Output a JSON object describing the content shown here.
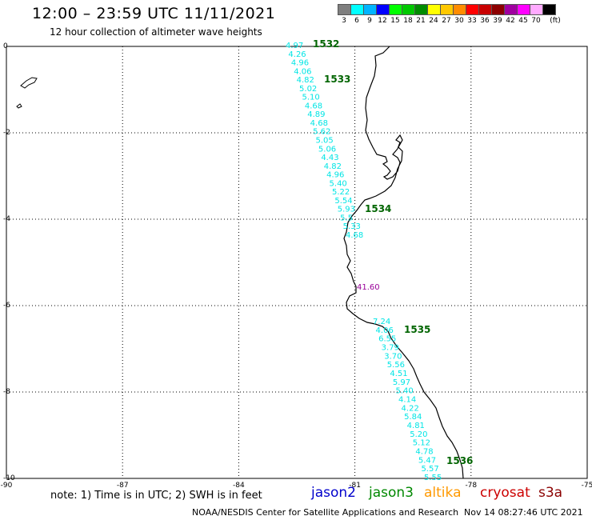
{
  "header": {
    "title": "12:00 – 23:59 UTC 11/11/2021",
    "subtitle": "12 hour collection of altimeter wave heights"
  },
  "scale": {
    "labels": [
      "3",
      "6",
      "9",
      "12",
      "15",
      "18",
      "21",
      "24",
      "27",
      "30",
      "33",
      "36",
      "39",
      "42",
      "45",
      "70",
      "(ft)"
    ],
    "colors": [
      "#7f7f7f",
      "#00ffff",
      "#00b4ff",
      "#0000ff",
      "#00ff00",
      "#00c800",
      "#008c00",
      "#ffff00",
      "#ffc800",
      "#ff8c00",
      "#ff0000",
      "#c80000",
      "#8c0000",
      "#a000a0",
      "#ff00ff",
      "#ffaaff",
      "#000000"
    ]
  },
  "map": {
    "lon_range": [
      -90,
      -75
    ],
    "lat_range": [
      -10,
      0
    ],
    "x_ticks": [
      "-90",
      "-87",
      "-84",
      "-81",
      "-78",
      "-75"
    ],
    "y_ticks": [
      "0",
      "-2",
      "-4",
      "-6",
      "-8",
      "-10"
    ],
    "grid": "dotted",
    "swh_color": "#00e5e5",
    "pass_color": "#006400",
    "outlier_color": "#990099",
    "swh_track_1": [
      "4.97",
      "4.26",
      "4.96",
      "4.06",
      "4.82",
      "5.02",
      "5.10",
      "4.68",
      "4.89",
      "4.68",
      "5.62",
      "5.05",
      "5.06",
      "4.43",
      "4.82",
      "4.96",
      "5.40",
      "5.22",
      "5.54",
      "5.93",
      "5.5",
      "5.33",
      "4.68"
    ],
    "swh_track_2": [
      "7.24",
      "4.06",
      "6.55",
      "3.79",
      "3.70",
      "5.56",
      "4.51",
      "5.97",
      "5.40",
      "4.14",
      "4.22",
      "5.84",
      "4.81",
      "5.20",
      "5.12",
      "4.78",
      "5.47",
      "5.57",
      "5.55"
    ],
    "outlier": "41.60",
    "passes": [
      "1532",
      "1533",
      "1534",
      "1535",
      "1536"
    ]
  },
  "footer": {
    "note": "note:  1) Time is in UTC;  2) SWH is in feet",
    "legend": [
      {
        "label": "jason2",
        "color": "#0000cc"
      },
      {
        "label": "jason3",
        "color": "#008800"
      },
      {
        "label": "altika",
        "color": "#ff9900"
      },
      {
        "label": "cryosat",
        "color": "#cc0000"
      },
      {
        "label": "s3a",
        "color": "#8b0000"
      }
    ],
    "credit": "NOAA/NESDIS Center for Satellite Applications and Research",
    "timestamp": "Nov 14 08:27:46 UTC 2021"
  }
}
